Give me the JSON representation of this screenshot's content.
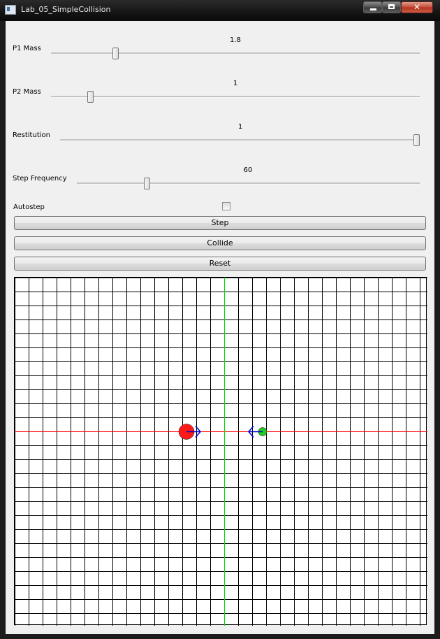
{
  "window": {
    "title": "Lab_05_SimpleCollision",
    "close_glyph": "✕"
  },
  "sliders": [
    {
      "label": "P1 Mass",
      "value": "1.8",
      "fraction": 0.17
    },
    {
      "label": "P2 Mass",
      "value": "1",
      "fraction": 0.1
    },
    {
      "label": "Restitution",
      "value": "1",
      "fraction": 1.0
    },
    {
      "label": "Step Frequency",
      "value": "60",
      "fraction": 0.2
    }
  ],
  "autostep": {
    "label": "Autostep",
    "checked": false
  },
  "buttons": {
    "step": "Step",
    "collide": "Collide",
    "reset": "Reset"
  },
  "sim": {
    "grid_color": "#000000",
    "x_axis_color": "#ff0000",
    "y_axis_color": "#00e000",
    "p1": {
      "color": "#ff1a1a",
      "direction": "right",
      "arrow_color": "#0000cc"
    },
    "p2": {
      "color": "#22cc22",
      "direction": "left",
      "arrow_color": "#0000cc"
    }
  }
}
